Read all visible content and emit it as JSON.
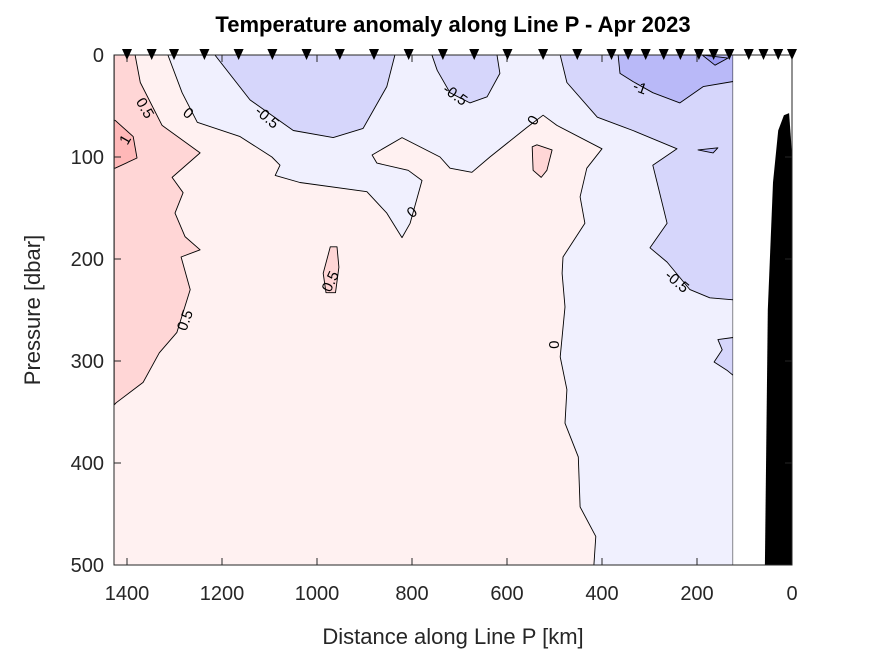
{
  "chart_data": {
    "type": "contour",
    "title": "Temperature anomaly along Line P - Apr 2023",
    "xlabel": "Distance along Line P [km]",
    "ylabel": "Pressure [dbar]",
    "xlim": [
      1427,
      0
    ],
    "ylim": [
      500,
      0
    ],
    "x_reversed": true,
    "y_reversed": true,
    "xticks": [
      1400,
      1200,
      1000,
      800,
      600,
      400,
      200,
      0
    ],
    "yticks": [
      0,
      100,
      200,
      300,
      400,
      500
    ],
    "grid": false,
    "contour_levels": [
      -1.5,
      -1,
      -0.5,
      0,
      0.5,
      1
    ],
    "colors": {
      "gt_1": "#ffb8b8",
      "0.5_to_1": "#ffd6d6",
      "0_to_0.5": "#fff1f1",
      "-0.5_to_0": "#f0f0fe",
      "-1_to_-0.5": "#d6d6fb",
      "-1.5_to_-1": "#b9b9f8",
      "lt_-1.5": "#9d9df4",
      "bathymetry": "#000000",
      "contour_line": "#000000"
    },
    "data_extent_km": [
      1427,
      124
    ],
    "stations_km": [
      1400,
      1348,
      1301,
      1237,
      1165,
      1094,
      1022,
      952,
      880,
      807,
      735,
      669,
      599,
      524,
      452,
      380,
      345,
      308,
      270,
      235,
      196,
      165,
      132,
      91,
      60,
      29,
      0
    ],
    "regions": [
      {
        "range": "-0.5_to_0",
        "points": [
          [
            1314,
            0
          ],
          [
            1284,
            37
          ],
          [
            1252,
            66
          ],
          [
            1162,
            80
          ],
          [
            1095,
            100
          ],
          [
            1078,
            108
          ],
          [
            1088,
            118
          ],
          [
            1036,
            125
          ],
          [
            895,
            134
          ],
          [
            853,
            155
          ],
          [
            821,
            179
          ],
          [
            804,
            165
          ],
          [
            779,
            123
          ],
          [
            808,
            113
          ],
          [
            874,
            106
          ],
          [
            884,
            98
          ],
          [
            821,
            81
          ],
          [
            741,
            100
          ],
          [
            720,
            111
          ],
          [
            674,
            115
          ],
          [
            636,
            100
          ],
          [
            558,
            71
          ],
          [
            524,
            59
          ],
          [
            495,
            69
          ],
          [
            400,
            92
          ],
          [
            432,
            111
          ],
          [
            446,
            139
          ],
          [
            436,
            165
          ],
          [
            482,
            198
          ],
          [
            484,
            214
          ],
          [
            478,
            247
          ],
          [
            488,
            296
          ],
          [
            474,
            328
          ],
          [
            478,
            361
          ],
          [
            450,
            394
          ],
          [
            446,
            443
          ],
          [
            413,
            472
          ],
          [
            417,
            500
          ],
          [
            124,
            500
          ],
          [
            124,
            0
          ]
        ]
      },
      {
        "range": "-1_to_-0.5",
        "points": [
          [
            1215,
            0
          ],
          [
            1141,
            44
          ],
          [
            1050,
            74
          ],
          [
            966,
            81
          ],
          [
            903,
            72
          ],
          [
            853,
            31
          ],
          [
            836,
            0
          ]
        ]
      },
      {
        "range": "-1_to_-0.5",
        "points": [
          [
            758,
            0
          ],
          [
            747,
            15
          ],
          [
            720,
            37
          ],
          [
            678,
            47
          ],
          [
            642,
            41
          ],
          [
            615,
            18
          ],
          [
            621,
            0
          ]
        ]
      },
      {
        "range": "-1_to_-0.5",
        "points": [
          [
            488,
            0
          ],
          [
            474,
            27
          ],
          [
            410,
            61
          ],
          [
            335,
            74
          ],
          [
            242,
            92
          ],
          [
            293,
            108
          ],
          [
            284,
            125
          ],
          [
            263,
            165
          ],
          [
            299,
            189
          ],
          [
            263,
            203
          ],
          [
            215,
            230
          ],
          [
            173,
            238
          ],
          [
            124,
            240
          ],
          [
            124,
            0
          ]
        ]
      },
      {
        "range": "-1_to_-0.5",
        "points": [
          [
            156,
            279
          ],
          [
            124,
            277
          ],
          [
            124,
            314
          ],
          [
            137,
            309
          ],
          [
            164,
            301
          ],
          [
            147,
            289
          ]
        ]
      },
      {
        "range": "-1.5_to_-1",
        "points": [
          [
            366,
            0
          ],
          [
            362,
            18
          ],
          [
            335,
            26
          ],
          [
            293,
            37
          ],
          [
            236,
            47
          ],
          [
            187,
            31
          ],
          [
            124,
            26
          ],
          [
            124,
            0
          ]
        ]
      },
      {
        "range": "-1.5_to_-1",
        "points": [
          [
            198,
            93
          ],
          [
            156,
            91
          ],
          [
            166,
            96
          ]
        ]
      },
      {
        "range": "lt_-1.5",
        "points": [
          [
            189,
            0
          ],
          [
            162,
            10
          ],
          [
            135,
            3
          ]
        ]
      },
      {
        "range": "0.5_to_1",
        "points": [
          [
            1383,
            0
          ],
          [
            1372,
            27
          ],
          [
            1326,
            69
          ],
          [
            1246,
            96
          ],
          [
            1305,
            120
          ],
          [
            1282,
            135
          ],
          [
            1299,
            155
          ],
          [
            1278,
            178
          ],
          [
            1246,
            191
          ],
          [
            1286,
            198
          ],
          [
            1267,
            230
          ],
          [
            1295,
            272
          ],
          [
            1332,
            292
          ],
          [
            1366,
            321
          ],
          [
            1423,
            341
          ],
          [
            1427,
            343
          ],
          [
            1427,
            0
          ]
        ]
      },
      {
        "range": "0.5_to_1",
        "points": [
          [
            972,
            188
          ],
          [
            958,
            188
          ],
          [
            954,
            208
          ],
          [
            961,
            233
          ],
          [
            981,
            233
          ],
          [
            987,
            214
          ]
        ]
      },
      {
        "range": "0.5_to_1",
        "points": [
          [
            547,
            90
          ],
          [
            537,
            88
          ],
          [
            505,
            93
          ],
          [
            516,
            113
          ],
          [
            528,
            120
          ],
          [
            545,
            113
          ]
        ]
      },
      {
        "range": "gt_1",
        "points": [
          [
            1425,
            64
          ],
          [
            1387,
            80
          ],
          [
            1379,
            101
          ],
          [
            1425,
            111
          ],
          [
            1427,
            111
          ],
          [
            1427,
            64
          ]
        ]
      }
    ],
    "bathymetry": [
      [
        57,
        500
      ],
      [
        51,
        250
      ],
      [
        40,
        125
      ],
      [
        29,
        74
      ],
      [
        17,
        59
      ],
      [
        6,
        57
      ],
      [
        2,
        83
      ],
      [
        0,
        103
      ],
      [
        0,
        500
      ]
    ],
    "contour_labels": [
      {
        "text": "0.5",
        "km": 1362,
        "dbar": 52
      },
      {
        "text": "1",
        "km": 1404,
        "dbar": 83
      },
      {
        "text": "0",
        "km": 1271,
        "dbar": 57
      },
      {
        "text": "-0.5",
        "km": 1105,
        "dbar": 61
      },
      {
        "text": "-0.5",
        "km": 709,
        "dbar": 39
      },
      {
        "text": "0",
        "km": 545,
        "dbar": 64
      },
      {
        "text": "-1",
        "km": 320,
        "dbar": 32
      },
      {
        "text": "0",
        "km": 800,
        "dbar": 154
      },
      {
        "text": "0.5",
        "km": 972,
        "dbar": 222
      },
      {
        "text": "0.5",
        "km": 1278,
        "dbar": 260
      },
      {
        "text": "0",
        "km": 501,
        "dbar": 284
      },
      {
        "text": "-0.5",
        "km": 242,
        "dbar": 222
      }
    ]
  }
}
